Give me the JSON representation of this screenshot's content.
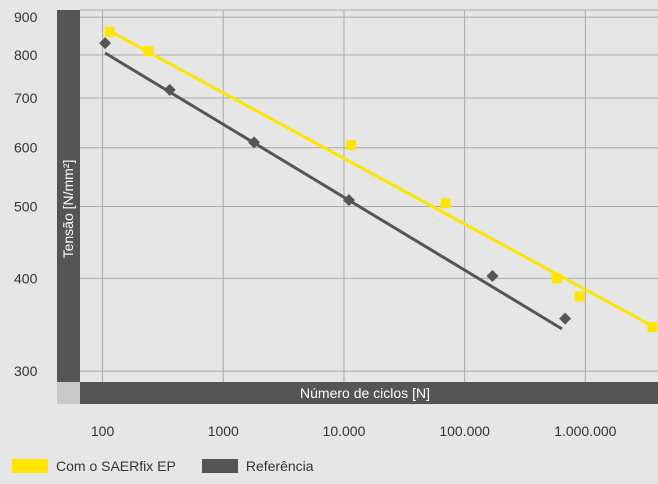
{
  "chart_data": {
    "type": "scatter",
    "title": "",
    "xlabel": "Número de ciclos [N]",
    "ylabel": "Tensão [N/mm²]",
    "x_scale": "log",
    "y_scale": "log",
    "xlim": [
      65,
      4000000
    ],
    "ylim": [
      290,
      920
    ],
    "x_ticks": [
      100,
      1000,
      10000,
      100000,
      1000000
    ],
    "x_tick_labels": [
      "100",
      "1000",
      "10.000",
      "100.000",
      "1.000.000"
    ],
    "y_ticks": [
      300,
      400,
      500,
      600,
      700,
      800,
      900
    ],
    "y_tick_labels": [
      "300",
      "400",
      "500",
      "600",
      "700",
      "800",
      "900"
    ],
    "grid": true,
    "legend_position": "bottom-left",
    "series": [
      {
        "name": "Com o SAERfix EP",
        "color": "#ffe500",
        "marker": "square",
        "points": [
          {
            "x": 115,
            "y": 860
          },
          {
            "x": 240,
            "y": 810
          },
          {
            "x": 11500,
            "y": 605
          },
          {
            "x": 70000,
            "y": 505
          },
          {
            "x": 580000,
            "y": 400
          },
          {
            "x": 900000,
            "y": 378
          },
          {
            "x": 3600000,
            "y": 344
          }
        ],
        "trend": [
          {
            "x": 110,
            "y": 865
          },
          {
            "x": 3600000,
            "y": 345
          }
        ]
      },
      {
        "name": "Referência",
        "color": "#555555",
        "marker": "diamond",
        "points": [
          {
            "x": 105,
            "y": 830
          },
          {
            "x": 360,
            "y": 718
          },
          {
            "x": 1800,
            "y": 610
          },
          {
            "x": 11000,
            "y": 510
          },
          {
            "x": 170000,
            "y": 403
          },
          {
            "x": 680000,
            "y": 353
          }
        ],
        "trend": [
          {
            "x": 105,
            "y": 805
          },
          {
            "x": 640000,
            "y": 342
          }
        ]
      }
    ]
  },
  "legend": {
    "items": [
      {
        "label": "Com o SAERfix EP",
        "color": "#ffe500"
      },
      {
        "label": "Referência",
        "color": "#555555"
      }
    ]
  }
}
